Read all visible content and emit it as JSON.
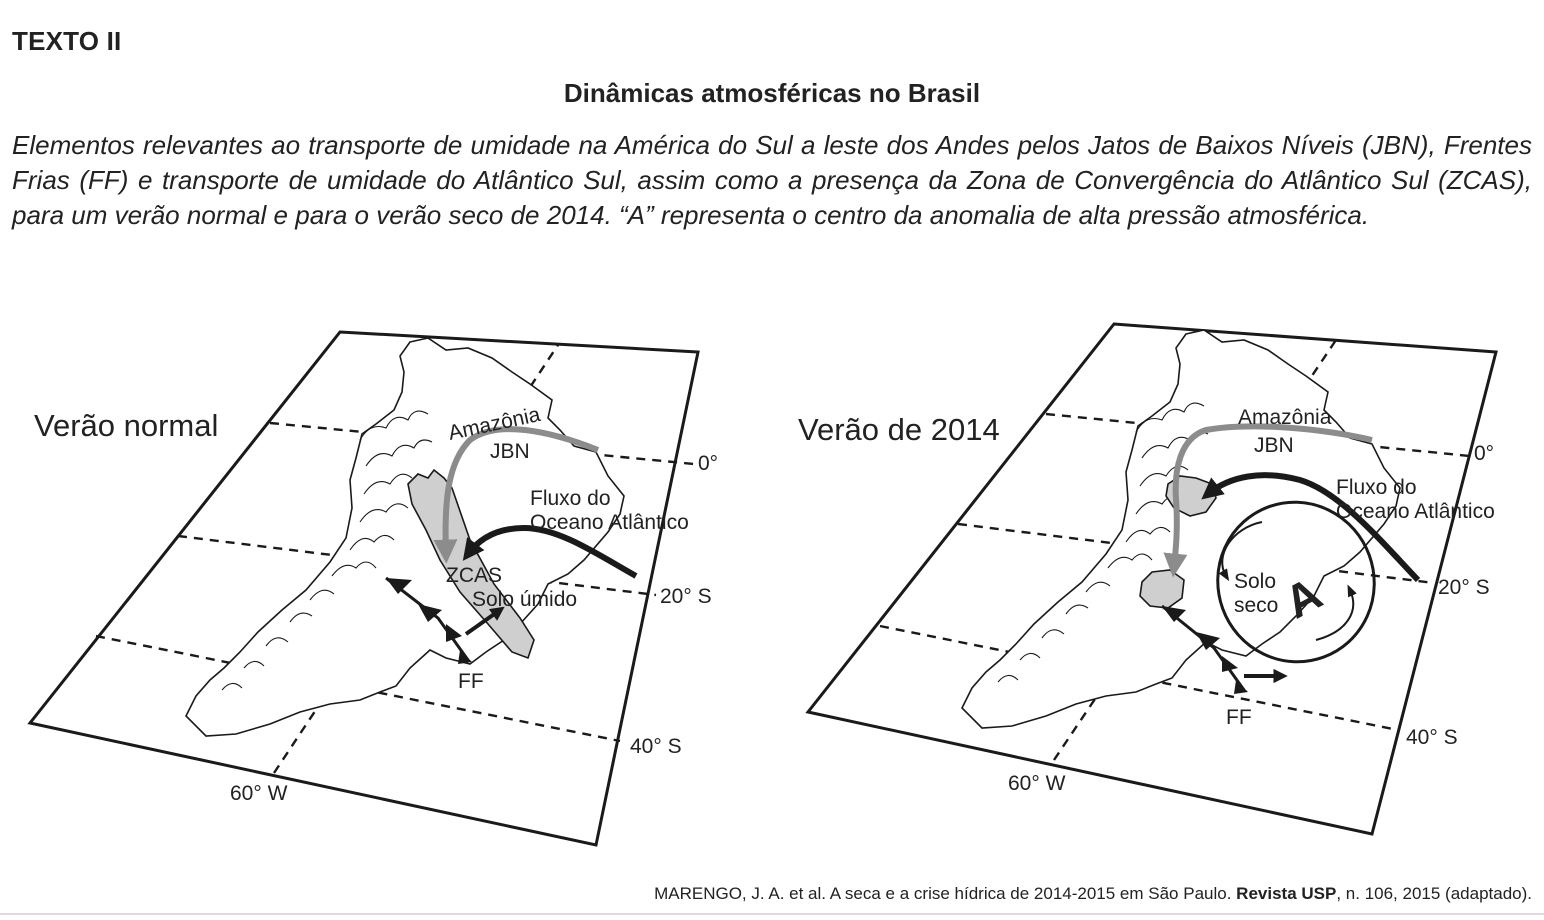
{
  "heading": "TEXTO II",
  "title": "Dinâmicas atmosféricas no Brasil",
  "caption": "Elementos relevantes ao transporte de umidade na América do Sul a leste dos Andes pelos Jatos de Baixos Níveis (JBN), Frentes Frias (FF) e transporte de umidade do Atlântico Sul, assim como a presença da Zona de Convergência do Atlântico Sul (ZCAS), para um verão normal e para o verão seco de 2014. “A” representa o centro da anomalia de alta pressão atmosférica.",
  "maps": {
    "normal": {
      "title": "Verão normal",
      "amazonia": "Amazônia",
      "jbn": "JBN",
      "fluxo_line1": "Fluxo do",
      "fluxo_line2": "Oceano Atlântico",
      "zcas": "ZCAS",
      "solo": "Solo úmido",
      "ff": "FF",
      "lat0": "0°",
      "lat20": "20° S",
      "lat40": "40° S",
      "lon60": "60° W"
    },
    "dry": {
      "title": "Verão de 2014",
      "amazonia": "Amazônia",
      "jbn": "JBN",
      "fluxo_line1": "Fluxo do",
      "fluxo_line2": "Oceano Atlântico",
      "solo_line1": "Solo",
      "solo_line2": "seco",
      "high": "A",
      "ff": "FF",
      "lat0": "0°",
      "lat20": "20° S",
      "lat40": "40° S",
      "lon60": "60° W"
    }
  },
  "source": {
    "prefix": "MARENGO, J. A. et al. A seca e a crise hídrica de 2014-2015 em São Paulo. ",
    "journal": "Revista USP",
    "suffix": ", n. 106, 2015 (adaptado)."
  },
  "colors": {
    "jbn_arrow": "#8c8c8c",
    "zone_fill": "#cfcfcf",
    "ink": "#1a1a1a"
  }
}
